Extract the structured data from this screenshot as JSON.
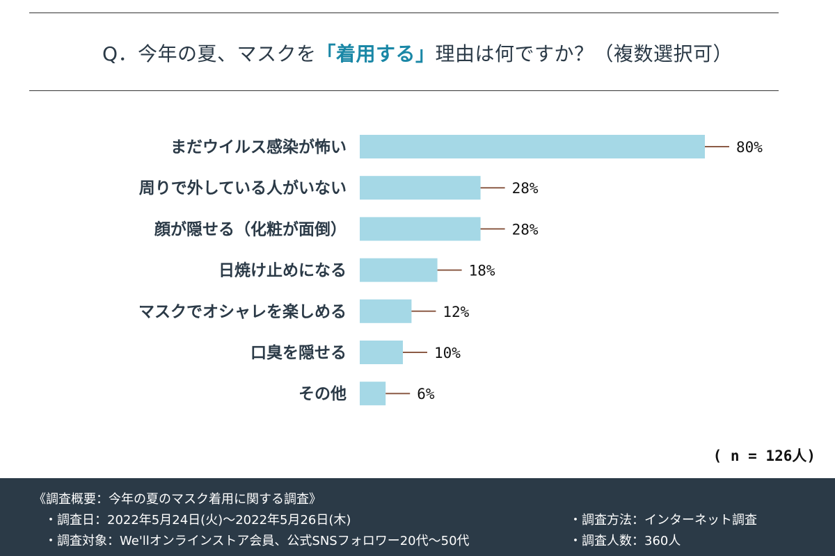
{
  "header": {
    "title_prefix": "Q．今年の夏、マスクを",
    "title_highlight": "「着用する」",
    "title_suffix": "理由は何ですか？（複数選択可）"
  },
  "chart_data": {
    "type": "bar",
    "orientation": "horizontal",
    "title": "Q．今年の夏、マスクを「着用する」理由は何ですか？（複数選択可）",
    "categories": [
      "まだウイルス感染が怖い",
      "周りで外している人がいない",
      "顔が隠せる（化粧が面倒）",
      "日焼け止めになる",
      "マスクでオシャレを楽しめる",
      "口臭を隠せる",
      "その他"
    ],
    "values": [
      80,
      28,
      28,
      18,
      12,
      10,
      6
    ],
    "value_labels": [
      "80%",
      "28%",
      "28%",
      "18%",
      "12%",
      "10%",
      "6%"
    ],
    "unit": "%",
    "xlim": [
      0,
      100
    ],
    "grid": false,
    "colors": {
      "bar": "#a5d8e6",
      "leader": "#8b5a45",
      "label": "#2b3a47"
    }
  },
  "sample": {
    "label": "( n = 126人)"
  },
  "footer": {
    "heading": "《調査概要：今年の夏のマスク着用に関する調査》",
    "date": "・調査日：2022年5月24日(火)〜2022年5月26日(木)",
    "target": "・調査対象：We'llオンラインストア会員、公式SNSフォロワー20代〜50代",
    "method": "・調査方法：インターネット調査",
    "count": "・調査人数：360人"
  }
}
